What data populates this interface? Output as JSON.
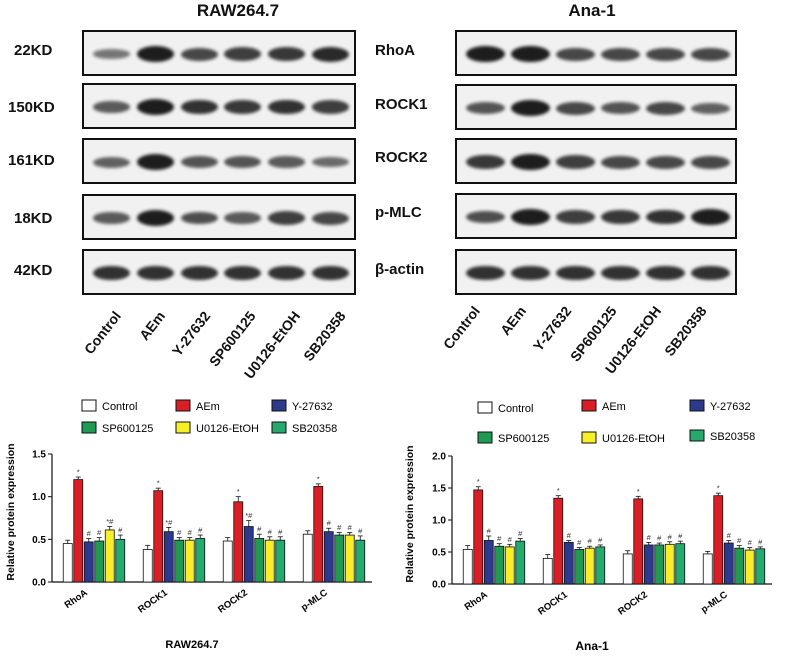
{
  "lanes": [
    "Control",
    "AEm",
    "Y-27632",
    "SP600125",
    "U0126-EtOH",
    "SB20358"
  ],
  "blots": [
    {
      "title": "RAW264.7",
      "left_labels": [
        "22KD",
        "150KD",
        "161KD",
        "18KD",
        "42KD"
      ],
      "proteins": [
        "RhoA",
        "ROCK1",
        "ROCK2",
        "p-MLC",
        "β-actin"
      ]
    },
    {
      "title": "Ana-1",
      "left_labels": [],
      "proteins": []
    }
  ],
  "colors": {
    "Control": "#ffffff",
    "AEm": "#d81f26",
    "Y-27632": "#2b3a8c",
    "SP600125": "#1f9a52",
    "U0126-EtOH": "#f7ef27",
    "SB20358": "#26a86f"
  },
  "chart_data": [
    {
      "type": "bar",
      "title": "RAW264.7",
      "xlabel": "",
      "ylabel": "Relative protein expression",
      "ylim": [
        0,
        1.5
      ],
      "yticks": [
        "0.0",
        "0.5",
        "1.0",
        "1.5"
      ],
      "categories": [
        "RhoA",
        "ROCK1",
        "ROCK2",
        "p-MLC"
      ],
      "legend": [
        "Control",
        "AEm",
        "Y-27632",
        "SP600125",
        "U0126-EtOH",
        "SB20358"
      ],
      "series": [
        {
          "name": "Control",
          "values": [
            0.45,
            0.38,
            0.48,
            0.56
          ],
          "errors": [
            0.04,
            0.05,
            0.04,
            0.04
          ],
          "marks": [
            "",
            "",
            "",
            ""
          ]
        },
        {
          "name": "AEm",
          "values": [
            1.2,
            1.07,
            0.94,
            1.12
          ],
          "errors": [
            0.03,
            0.03,
            0.06,
            0.03
          ],
          "marks": [
            "*",
            "*",
            "*",
            "*"
          ]
        },
        {
          "name": "Y-27632",
          "values": [
            0.47,
            0.59,
            0.65,
            0.59
          ],
          "errors": [
            0.04,
            0.05,
            0.07,
            0.04
          ],
          "marks": [
            "#",
            "*#",
            "*#",
            "#"
          ]
        },
        {
          "name": "SP600125",
          "values": [
            0.48,
            0.49,
            0.51,
            0.55
          ],
          "errors": [
            0.04,
            0.03,
            0.05,
            0.03
          ],
          "marks": [
            "#",
            "#",
            "#",
            "#"
          ]
        },
        {
          "name": "U0126-EtOH",
          "values": [
            0.61,
            0.49,
            0.49,
            0.55
          ],
          "errors": [
            0.04,
            0.03,
            0.04,
            0.03
          ],
          "marks": [
            "*#",
            "#",
            "#",
            "#"
          ]
        },
        {
          "name": "SB20358",
          "values": [
            0.5,
            0.51,
            0.49,
            0.49
          ],
          "errors": [
            0.05,
            0.04,
            0.04,
            0.05
          ],
          "marks": [
            "#",
            "#",
            "#",
            "#"
          ]
        }
      ],
      "footer": "RAW264.7"
    },
    {
      "type": "bar",
      "title": "Ana-1",
      "xlabel": "",
      "ylabel": "Relative protein expression",
      "ylim": [
        0,
        2.0
      ],
      "yticks": [
        "0.0",
        "0.5",
        "1.0",
        "1.5",
        "2.0"
      ],
      "categories": [
        "RhoA",
        "ROCK1",
        "ROCK2",
        "p-MLC"
      ],
      "legend": [
        "Control",
        "AEm",
        "Y-27632",
        "SP600125",
        "U0126-EtOH",
        "SB20358"
      ],
      "series": [
        {
          "name": "Control",
          "values": [
            0.54,
            0.4,
            0.47,
            0.47
          ],
          "errors": [
            0.06,
            0.06,
            0.05,
            0.04
          ],
          "marks": [
            "",
            "",
            "",
            ""
          ]
        },
        {
          "name": "AEm",
          "values": [
            1.47,
            1.34,
            1.33,
            1.38
          ],
          "errors": [
            0.05,
            0.04,
            0.04,
            0.04
          ],
          "marks": [
            "*",
            "*",
            "*",
            "*"
          ]
        },
        {
          "name": "Y-27632",
          "values": [
            0.68,
            0.65,
            0.61,
            0.64
          ],
          "errors": [
            0.07,
            0.03,
            0.04,
            0.04
          ],
          "marks": [
            "#",
            "#",
            "#",
            "#"
          ]
        },
        {
          "name": "SP600125",
          "values": [
            0.59,
            0.54,
            0.61,
            0.56
          ],
          "errors": [
            0.04,
            0.03,
            0.03,
            0.04
          ],
          "marks": [
            "#",
            "#",
            "#",
            "#"
          ]
        },
        {
          "name": "U0126-EtOH",
          "values": [
            0.58,
            0.56,
            0.62,
            0.53
          ],
          "errors": [
            0.04,
            0.03,
            0.04,
            0.04
          ],
          "marks": [
            "#",
            "#",
            "#",
            "#"
          ]
        },
        {
          "name": "SB20358",
          "values": [
            0.67,
            0.58,
            0.63,
            0.55
          ],
          "errors": [
            0.04,
            0.03,
            0.04,
            0.03
          ],
          "marks": [
            "#",
            "#",
            "#",
            "#"
          ]
        }
      ],
      "footer": "Ana-1"
    }
  ]
}
